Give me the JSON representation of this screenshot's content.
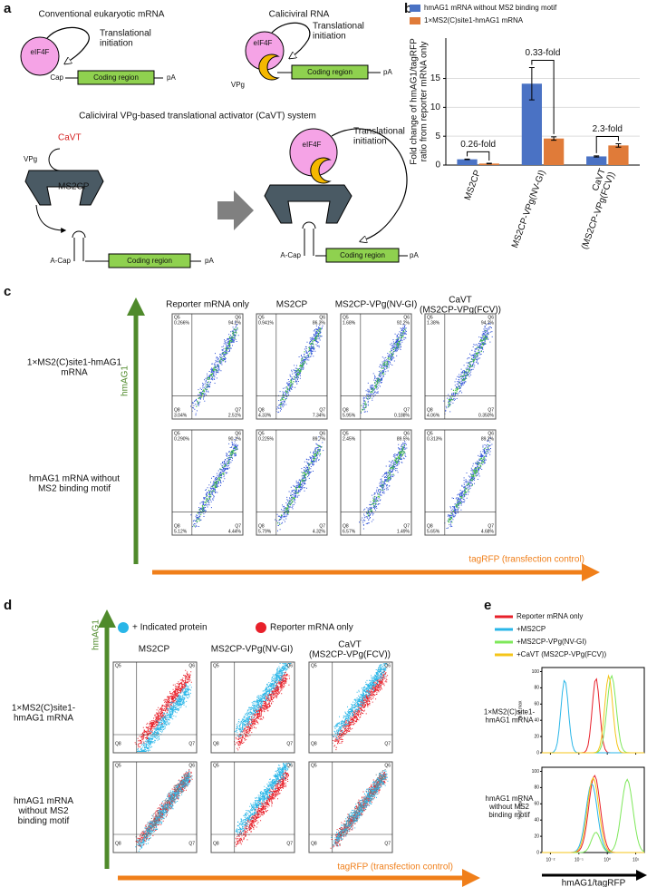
{
  "panel_a": {
    "label": "a",
    "conventional_title": "Conventional eukaryotic mRNA",
    "calici_title": "Caliciviral RNA",
    "eif4f": "eIF4F",
    "translational_initiation": "Translational\ninitiation",
    "cap": "Cap",
    "coding_region": "Coding region",
    "pa": "pA",
    "vpg": "VPg",
    "cavt_system_title": "Caliciviral VPg-based translational activator (CaVT) system",
    "cavt": "CaVT",
    "ms2cp": "MS2CP",
    "a_cap": "A-Cap"
  },
  "panel_b": {
    "label": "b",
    "chart_data": {
      "type": "bar",
      "y_label": "Fold change of hmAG1/tagRFP\nratio from reporter mRNA only",
      "categories": [
        "MS2CP",
        "MS2CP-VPg(NV-GI)",
        "CaVT\n(MS2CP-VPg(FCV))"
      ],
      "series": [
        {
          "name": "hmAG1 mRNA without MS2 binding motif",
          "color": "#4a72c4",
          "values": [
            1,
            14.1,
            1.5
          ],
          "errors": [
            0.05,
            2.8,
            0.1
          ]
        },
        {
          "name": "1×MS2(C)site1-hmAG1 mRNA",
          "color": "#e07b39",
          "values": [
            0.26,
            4.6,
            3.4
          ],
          "errors": [
            0.05,
            0.3,
            0.3
          ]
        }
      ],
      "ylim": [
        0,
        22
      ],
      "yticks": [
        0,
        5,
        10,
        15
      ],
      "grid": true,
      "annotations": [
        "0.26-fold",
        "0.33-fold",
        "2.3-fold"
      ]
    }
  },
  "panel_c": {
    "label": "c",
    "y_axis": "hmAG1",
    "x_axis": "tagRFP (transfection control)",
    "columns": [
      "Reporter mRNA only",
      "MS2CP",
      "MS2CP-VPg(NV-GI)",
      "CaVT\n(MS2CP-VPg(FCV))"
    ],
    "quadrant_names": [
      "Q5",
      "Q6",
      "Q8",
      "Q7"
    ],
    "rows": [
      {
        "label": "1×MS2(C)site1-hmAG1\nmRNA",
        "quadrants": [
          [
            "0.266%",
            "94.2%",
            "3.04%",
            "2.51%"
          ],
          [
            "0.941%",
            "86.3%",
            "4.33%",
            "7.34%"
          ],
          [
            "1.68%",
            "92.2%",
            "5.95%",
            "0.188%"
          ],
          [
            "1.38%",
            "94.2%",
            "4.06%",
            "0.350%"
          ]
        ]
      },
      {
        "label": "hmAG1 mRNA without\nMS2 binding motif",
        "quadrants": [
          [
            "0.290%",
            "90.1%",
            "5.12%",
            "4.44%"
          ],
          [
            "0.225%",
            "89.7%",
            "5.79%",
            "4.32%"
          ],
          [
            "2.45%",
            "89.5%",
            "6.57%",
            "1.49%"
          ],
          [
            "0.313%",
            "89.2%",
            "5.65%",
            "4.68%"
          ]
        ]
      }
    ]
  },
  "panel_d": {
    "label": "d",
    "legend": [
      "+ Indicated protein",
      "Reporter mRNA only"
    ],
    "y_axis": "hmAG1",
    "x_axis": "tagRFP (transfection control)",
    "columns": [
      "MS2CP",
      "MS2CP-VPg(NV-GI)",
      "CaVT\n(MS2CP-VPg(FCV))"
    ],
    "rows": [
      "1×MS2(C)site1-\nhmAG1 mRNA",
      "hmAG1 mRNA\nwithout MS2\nbinding motif"
    ],
    "quadrant_names": [
      "Q5",
      "Q6",
      "Q8",
      "Q7"
    ]
  },
  "panel_e": {
    "label": "e",
    "chart_data": {
      "type": "line",
      "series": [
        {
          "name": "Reporter mRNA only",
          "color": "#e8202a"
        },
        {
          "name": "+MS2CP",
          "color": "#29b6e8"
        },
        {
          "name": "+MS2CP-VPg(NV-GI)",
          "color": "#7ee85a"
        },
        {
          "name": "+CaVT (MS2CP-VPg(FCV))",
          "color": "#f5c518"
        }
      ],
      "rows": [
        "1×MS2(C)site1-\nhmAG1 mRNA",
        "hmAG1 mRNA\nwithout MS2\nbinding motif"
      ],
      "y_label": "% of max",
      "x_label": "hmAG1/tagRFP",
      "log_x": true,
      "xlim": [
        0.005,
        20
      ],
      "xticks": [
        {
          "value": 0.01,
          "label": "10⁻²"
        },
        {
          "value": 0.1,
          "label": "10⁻¹"
        },
        {
          "value": 1,
          "label": "10⁰"
        },
        {
          "value": 10,
          "label": "10¹"
        }
      ],
      "ylim": [
        0,
        105
      ],
      "yticks": [
        0,
        20,
        40,
        60,
        80,
        100
      ]
    }
  }
}
